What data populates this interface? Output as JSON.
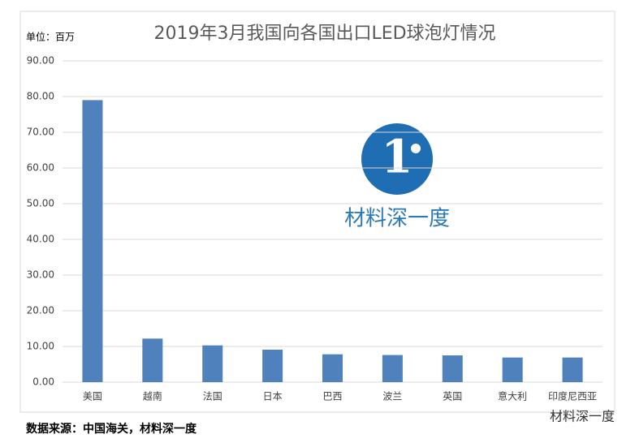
{
  "chart_data": {
    "type": "bar",
    "title": "2019年3月我国向各国出口LED球泡灯情况",
    "unit_label": "单位：百万",
    "categories": [
      "美国",
      "越南",
      "法国",
      "日本",
      "巴西",
      "波兰",
      "英国",
      "意大利",
      "印度尼西亚"
    ],
    "values": [
      79,
      12.2,
      10.3,
      9.1,
      7.8,
      7.6,
      7.5,
      6.9,
      6.9
    ],
    "color": "#4f81bd",
    "ylim": [
      0,
      90
    ],
    "yticks": [
      {
        "value": 0,
        "label": "0.00"
      },
      {
        "value": 10,
        "label": "10.00"
      },
      {
        "value": 20,
        "label": "20.00"
      },
      {
        "value": 30,
        "label": "30.00"
      },
      {
        "value": 40,
        "label": "40.00"
      },
      {
        "value": 50,
        "label": "50.00"
      },
      {
        "value": 60,
        "label": "60.00"
      },
      {
        "value": 70,
        "label": "70.00"
      },
      {
        "value": 80,
        "label": "80.00"
      },
      {
        "value": 90,
        "label": "90.00"
      }
    ],
    "grid": true,
    "watermark": "材料深一度",
    "source": "数据来源：中国海关，材料深一度",
    "footer_brand": "材料深一度"
  }
}
